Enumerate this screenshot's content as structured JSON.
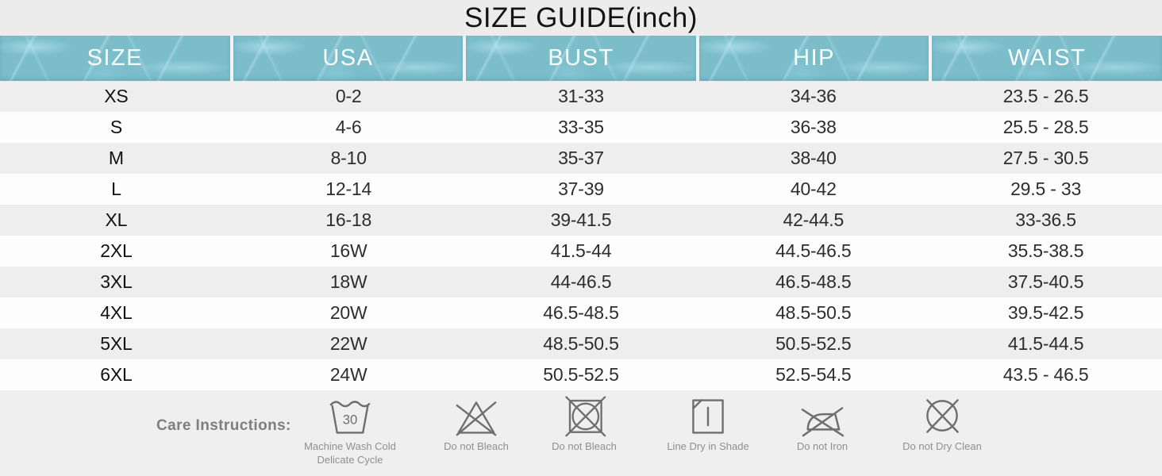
{
  "title": "SIZE GUIDE(inch)",
  "table": {
    "headers": [
      "SIZE",
      "USA",
      "BUST",
      "HIP",
      "WAIST"
    ],
    "rows": [
      [
        "XS",
        "0-2",
        "31-33",
        "34-36",
        "23.5 - 26.5"
      ],
      [
        "S",
        "4-6",
        "33-35",
        "36-38",
        "25.5 - 28.5"
      ],
      [
        "M",
        "8-10",
        "35-37",
        "38-40",
        "27.5 - 30.5"
      ],
      [
        "L",
        "12-14",
        "37-39",
        "40-42",
        "29.5 - 33"
      ],
      [
        "XL",
        "16-18",
        "39-41.5",
        "42-44.5",
        "33-36.5"
      ],
      [
        "2XL",
        "16W",
        "41.5-44",
        "44.5-46.5",
        "35.5-38.5"
      ],
      [
        "3XL",
        "18W",
        "44-46.5",
        "46.5-48.5",
        "37.5-40.5"
      ],
      [
        "4XL",
        "20W",
        "46.5-48.5",
        "48.5-50.5",
        "39.5-42.5"
      ],
      [
        "5XL",
        "22W",
        "48.5-50.5",
        "50.5-52.5",
        "41.5-44.5"
      ],
      [
        "6XL",
        "24W",
        "50.5-52.5",
        "52.5-54.5",
        "43.5 - 46.5"
      ]
    ]
  },
  "care": {
    "label": "Care Instructions:",
    "items": [
      {
        "icon": "machine-wash-30-icon",
        "wash_temp": "30",
        "label": "Machine Wash Cold",
        "label2": "Delicate Cycle"
      },
      {
        "icon": "do-not-bleach-icon",
        "label": "Do not Bleach"
      },
      {
        "icon": "do-not-tumble-dry-icon",
        "label": "Do not Bleach"
      },
      {
        "icon": "line-dry-in-shade-icon",
        "label": "Line Dry in Shade"
      },
      {
        "icon": "do-not-iron-icon",
        "label": "Do not Iron"
      },
      {
        "icon": "do-not-dry-clean-icon",
        "label": "Do not Dry Clean"
      }
    ]
  },
  "colors": {
    "header_teal": "#7cbdca",
    "header_text": "#ffffff",
    "row_gray": "#eeeeee",
    "row_white": "#fdfdfd",
    "page_bg": "#ececec",
    "care_bg": "#efefef",
    "icon_gray": "#6f6f6f",
    "care_text_gray": "#8f8f8f"
  }
}
